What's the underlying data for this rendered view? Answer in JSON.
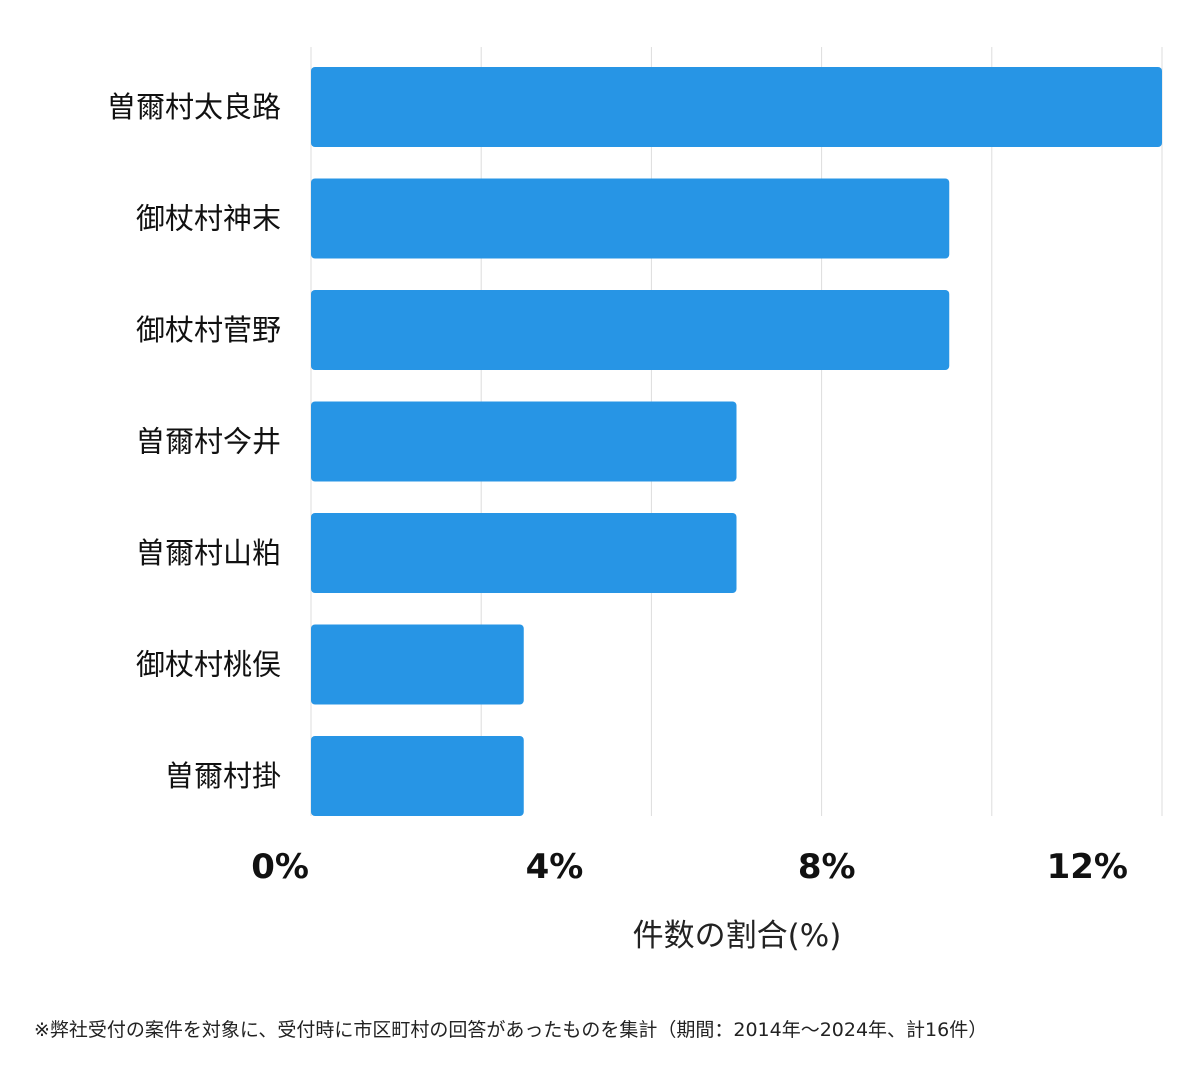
{
  "chart_data": {
    "type": "bar",
    "orientation": "horizontal",
    "categories": [
      "曽爾村太良路",
      "御杖村神末",
      "御杖村菅野",
      "曽爾村今井",
      "曽爾村山粕",
      "御杖村桃俣",
      "曽爾村掛"
    ],
    "values": [
      12.5,
      9.375,
      9.375,
      6.25,
      6.25,
      3.125,
      3.125
    ],
    "xlim": [
      0,
      12.5
    ],
    "xticks": [
      0,
      4,
      8,
      12
    ],
    "xtick_labels": [
      "0%",
      "4%",
      "8%",
      "12%"
    ],
    "xlabel": "件数の割合(%)",
    "ylabel": "",
    "title": "",
    "grid": "vertical",
    "legend": "none",
    "bar_color": "#2795e5",
    "grid_color": "#dddddd"
  },
  "footnote": "※弊社受付の案件を対象に、受付時に市区町村の回答があったものを集計（期間：2014年～2024年、計16件）"
}
